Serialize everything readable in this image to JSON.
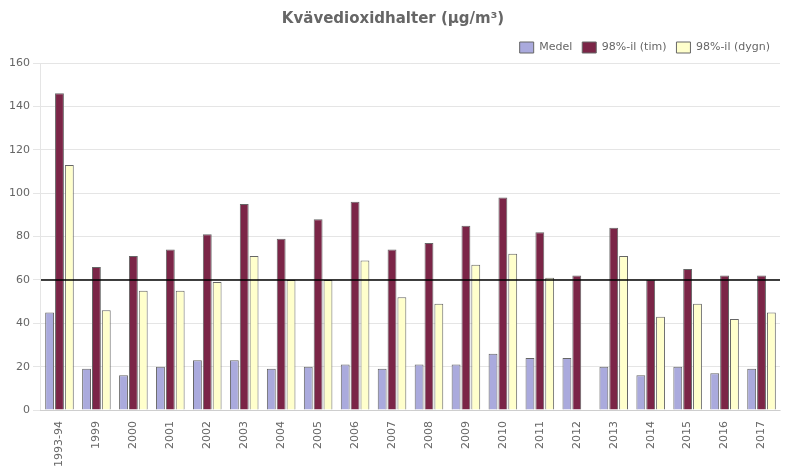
{
  "chart_data": {
    "type": "bar",
    "title": "Kvävedioxidhalter (µg/m³)",
    "categories": [
      "1993-94",
      "1999",
      "2000",
      "2001",
      "2002",
      "2003",
      "2004",
      "2005",
      "2006",
      "2007",
      "2008",
      "2009",
      "2010",
      "2011",
      "2012",
      "2013",
      "2014",
      "2015",
      "2016",
      "2017"
    ],
    "series": [
      {
        "name": "Medel",
        "color": "#aaaadd",
        "values": [
          45,
          19,
          16,
          20,
          23,
          23,
          19,
          20,
          21,
          19,
          21,
          21,
          26,
          24,
          24,
          20,
          16,
          20,
          17,
          19
        ]
      },
      {
        "name": "98%-il (tim)",
        "color": "#7b2547",
        "values": [
          146,
          66,
          71,
          74,
          81,
          95,
          79,
          88,
          96,
          74,
          77,
          85,
          98,
          82,
          62,
          84,
          60,
          65,
          62,
          62
        ]
      },
      {
        "name": "98%-il (dygn)",
        "color": "#ffffcc",
        "values": [
          113,
          46,
          55,
          55,
          59,
          71,
          60,
          60,
          69,
          52,
          49,
          67,
          72,
          61,
          null,
          71,
          43,
          49,
          42,
          45
        ]
      }
    ],
    "ref_line": 60,
    "ylim": [
      0,
      160
    ],
    "yticks": [
      0,
      20,
      40,
      60,
      80,
      100,
      120,
      140,
      160
    ],
    "grid": true,
    "legend": "upper right"
  }
}
